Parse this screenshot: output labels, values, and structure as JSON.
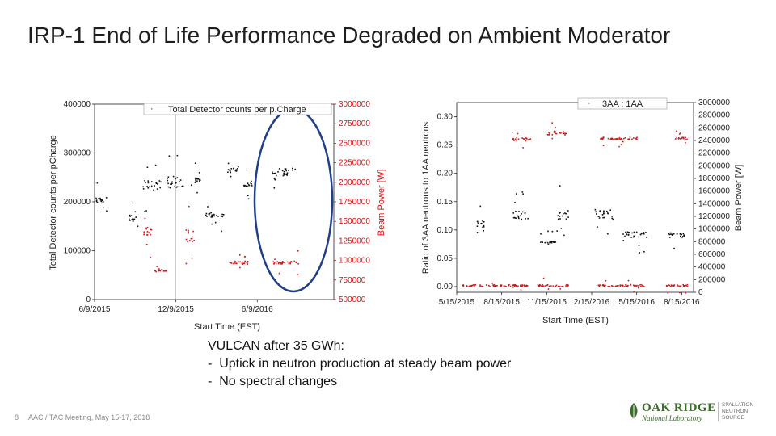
{
  "slide": {
    "title": "IRP-1 End of Life Performance Degraded on Ambient Moderator",
    "page_number": "8",
    "footer": "AAC / TAC Meeting, May 15-17, 2018",
    "notes": {
      "heading": "VULCAN after 35 GWh:",
      "bullets": [
        "-  Uptick in neutron production at steady beam power",
        "-  No spectral changes"
      ]
    },
    "logo": {
      "main": "OAK RIDGE",
      "sub": "National Laboratory",
      "division": "SPALLATION NEUTRON SOURCE"
    }
  },
  "colors": {
    "black": "#111111",
    "red": "#d41818",
    "circle": "#1f3f86",
    "logo_green": "#3d6b2a"
  },
  "chart_data": [
    {
      "type": "scatter",
      "title": "",
      "legend": "Total Detector counts per p.Charge",
      "xlabel": "Start Time (EST)",
      "ylabel": "Total Detector counts per pCharge",
      "y2label": "Beam Power [W]",
      "x_ticks": [
        "6/9/2015",
        "12/9/2015",
        "6/9/2016"
      ],
      "y_ticks": [
        "0",
        "100000",
        "200000",
        "300000",
        "400000"
      ],
      "y2_ticks": [
        "500000",
        "750000",
        "1000000",
        "1250000",
        "1500000",
        "1750000",
        "2000000",
        "2250000",
        "2500000",
        "2750000",
        "3000000"
      ],
      "ylim": [
        0,
        400000
      ],
      "y2lim": [
        500000,
        3000000
      ],
      "annotation": "ellipse around post-2016 segment",
      "series": [
        {
          "name": "Total Detector counts per p.Charge",
          "color": "#111111",
          "segments": [
            {
              "t": [
                0.0,
                0.05
              ],
              "y": [
                200000,
                210000
              ]
            },
            {
              "t": [
                0.14,
                0.18
              ],
              "y": [
                160000,
                175000
              ]
            },
            {
              "t": [
                0.2,
                0.28
              ],
              "y": [
                225000,
                245000
              ]
            },
            {
              "t": [
                0.3,
                0.38
              ],
              "y": [
                230000,
                255000
              ]
            },
            {
              "t": [
                0.4,
                0.44
              ],
              "y": [
                240000,
                250000
              ]
            },
            {
              "t": [
                0.46,
                0.54
              ],
              "y": [
                170000,
                180000
              ]
            },
            {
              "t": [
                0.55,
                0.6
              ],
              "y": [
                260000,
                270000
              ]
            },
            {
              "t": [
                0.62,
                0.66
              ],
              "y": [
                232000,
                240000
              ]
            },
            {
              "t": [
                0.74,
                0.84
              ],
              "y": [
                255000,
                270000
              ]
            }
          ]
        },
        {
          "name": "Beam Power",
          "color": "#d41818",
          "segments": [
            {
              "t": [
                0.2,
                0.24
              ],
              "y": [
                1300000,
                1450000
              ]
            },
            {
              "t": [
                0.25,
                0.3
              ],
              "y": [
                870000,
                880000
              ]
            },
            {
              "t": [
                0.38,
                0.42
              ],
              "y": [
                1250000,
                1400000
              ]
            },
            {
              "t": [
                0.56,
                0.64
              ],
              "y": [
                960000,
                1000000
              ]
            },
            {
              "t": [
                0.74,
                0.85
              ],
              "y": [
                960000,
                1000000
              ]
            }
          ]
        }
      ]
    },
    {
      "type": "scatter",
      "legend": "3AA : 1AA",
      "xlabel": "Start Time (EST)",
      "ylabel": "Ratio of 3AA neutrons to 1AA neutrons",
      "y2label": "Beam Power [W]",
      "x_ticks": [
        "5/15/2015",
        "8/15/2015",
        "11/15/2015",
        "2/15/2016",
        "5/15/2016",
        "8/15/2016"
      ],
      "y_ticks": [
        "0.00",
        "0.05",
        "0.10",
        "0.15",
        "0.20",
        "0.25",
        "0.30"
      ],
      "y2_ticks": [
        "0",
        "200000",
        "400000",
        "600000",
        "800000",
        "1000000",
        "1200000",
        "1400000",
        "1600000",
        "1800000",
        "2000000",
        "2200000",
        "2400000",
        "2600000",
        "2800000",
        "3000000"
      ],
      "ylim": [
        -0.01,
        0.325
      ],
      "y2lim": [
        0,
        3000000
      ],
      "series": [
        {
          "name": "3AA : 1AA",
          "color": "#111111",
          "segments": [
            {
              "t": [
                0.08,
                0.12
              ],
              "y": [
                0.105,
                0.118
              ]
            },
            {
              "t": [
                0.23,
                0.3
              ],
              "y": [
                0.12,
                0.135
              ]
            },
            {
              "t": [
                0.35,
                0.42
              ],
              "y": [
                0.078,
                0.082
              ]
            },
            {
              "t": [
                0.42,
                0.47
              ],
              "y": [
                0.12,
                0.14
              ]
            },
            {
              "t": [
                0.58,
                0.66
              ],
              "y": [
                0.12,
                0.135
              ]
            },
            {
              "t": [
                0.7,
                0.8
              ],
              "y": [
                0.088,
                0.098
              ]
            },
            {
              "t": [
                0.89,
                0.96
              ],
              "y": [
                0.088,
                0.095
              ]
            }
          ]
        },
        {
          "name": "Beam Power",
          "color": "#d41818",
          "segments": [
            {
              "t": [
                0.02,
                0.3
              ],
              "y": [
                100000,
                130000
              ]
            },
            {
              "t": [
                0.23,
                0.31
              ],
              "y": [
                2400000,
                2450000
              ]
            },
            {
              "t": [
                0.34,
                0.47
              ],
              "y": [
                100000,
                130000
              ]
            },
            {
              "t": [
                0.38,
                0.46
              ],
              "y": [
                2500000,
                2560000
              ]
            },
            {
              "t": [
                0.59,
                0.76
              ],
              "y": [
                2420000,
                2460000
              ]
            },
            {
              "t": [
                0.59,
                0.79
              ],
              "y": [
                100000,
                130000
              ]
            },
            {
              "t": [
                0.88,
                0.98
              ],
              "y": [
                100000,
                130000
              ]
            },
            {
              "t": [
                0.92,
                0.97
              ],
              "y": [
                2420000,
                2460000
              ]
            }
          ]
        }
      ]
    }
  ]
}
